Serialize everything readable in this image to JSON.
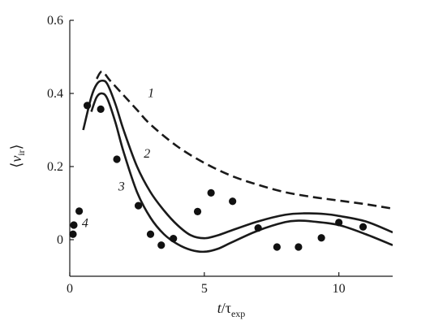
{
  "chart_data": {
    "type": "line",
    "xlim": [
      0,
      12
    ],
    "ylim": [
      -0.1,
      0.6
    ],
    "xticks": [
      0,
      5,
      10
    ],
    "yticks": [
      0,
      0.2,
      0.4,
      0.6
    ],
    "xtick_labels": [
      "0",
      "5",
      "10"
    ],
    "ytick_labels": [
      "0",
      "0.2",
      "0.4",
      "0.6"
    ],
    "grid": false,
    "legend": "none",
    "xlabel": {
      "t": "t",
      "slash": "/",
      "tau": "τ",
      "sub": "exp"
    },
    "ylabel": {
      "open": "⟨",
      "v": "v",
      "sub": "ir",
      "close": "⟩"
    },
    "series": [
      {
        "name": "1",
        "style": "dashed",
        "label_at": [
          2.9,
          0.39
        ],
        "x": [
          1.0,
          1.2,
          1.5,
          2.0,
          2.5,
          3.0,
          4.0,
          5.0,
          6.0,
          7.0,
          8.0,
          9.0,
          10.0,
          11.0,
          12.0
        ],
        "y": [
          0.44,
          0.46,
          0.435,
          0.395,
          0.355,
          0.315,
          0.255,
          0.21,
          0.175,
          0.15,
          0.13,
          0.117,
          0.107,
          0.097,
          0.085
        ]
      },
      {
        "name": "2",
        "style": "solid",
        "label_at": [
          2.75,
          0.225
        ],
        "x": [
          0.5,
          0.8,
          1.0,
          1.2,
          1.4,
          1.7,
          2.0,
          2.5,
          3.0,
          3.5,
          4.0,
          4.5,
          5.0,
          5.5,
          6.0,
          7.0,
          8.0,
          8.7,
          9.5,
          10.0,
          11.0,
          12.0
        ],
        "y": [
          0.3,
          0.39,
          0.425,
          0.435,
          0.425,
          0.37,
          0.3,
          0.2,
          0.13,
          0.08,
          0.04,
          0.012,
          0.004,
          0.012,
          0.025,
          0.05,
          0.068,
          0.072,
          0.07,
          0.065,
          0.05,
          0.02
        ]
      },
      {
        "name": "3",
        "style": "solid",
        "label_at": [
          1.8,
          0.135
        ],
        "x": [
          0.8,
          1.0,
          1.2,
          1.4,
          1.7,
          2.0,
          2.5,
          3.0,
          3.5,
          4.0,
          4.5,
          5.0,
          5.5,
          6.0,
          7.0,
          8.0,
          8.5,
          9.0,
          10.0,
          11.0,
          12.0
        ],
        "y": [
          0.35,
          0.39,
          0.4,
          0.385,
          0.32,
          0.24,
          0.13,
          0.06,
          0.015,
          -0.012,
          -0.028,
          -0.033,
          -0.025,
          -0.008,
          0.025,
          0.048,
          0.052,
          0.05,
          0.04,
          0.015,
          -0.015
        ]
      }
    ],
    "points": {
      "name": "4",
      "label_at": [
        0.45,
        0.035
      ],
      "x": [
        0.12,
        0.15,
        0.35,
        0.65,
        1.15,
        1.75,
        2.55,
        3.0,
        3.4,
        3.85,
        4.75,
        5.25,
        6.05,
        7.0,
        7.7,
        8.5,
        9.35,
        10.0,
        10.9
      ],
      "y": [
        0.015,
        0.04,
        0.078,
        0.367,
        0.357,
        0.22,
        0.093,
        0.015,
        -0.015,
        0.003,
        0.077,
        0.128,
        0.105,
        0.032,
        -0.02,
        -0.02,
        0.005,
        0.047,
        0.035
      ]
    }
  }
}
